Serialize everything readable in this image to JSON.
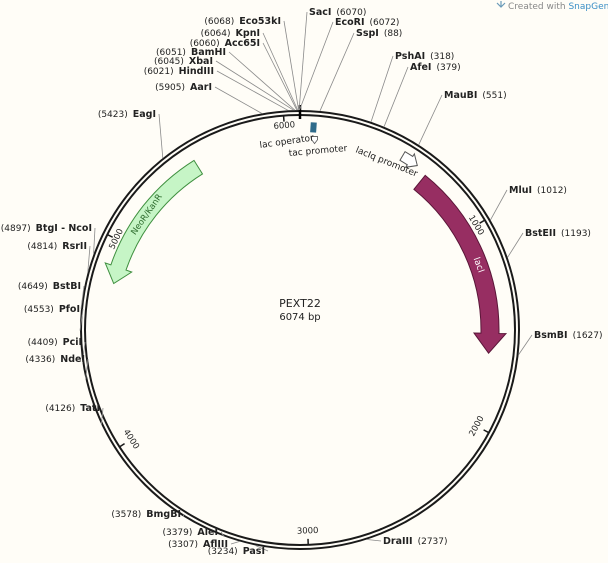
{
  "header": {
    "credit": "Created with",
    "brand": "SnapGene",
    "tm": "™"
  },
  "plasmid": {
    "name": "PEXT22",
    "size": "6074 bp"
  },
  "ruler_ticks": [
    1000,
    2000,
    3000,
    4000,
    5000,
    6000
  ],
  "sites": [
    {
      "name": "SacI",
      "position": "(6070)"
    },
    {
      "name": "EcoRI",
      "position": "(6072)"
    },
    {
      "name": "SspI",
      "position": "(88)"
    },
    {
      "name": "Eco53kI",
      "position": "(6068)"
    },
    {
      "name": "KpnI",
      "position": "(6064)"
    },
    {
      "name": "Acc65I",
      "position": "(6060)"
    },
    {
      "name": "BamHI",
      "position": "(6051)"
    },
    {
      "name": "XbaI",
      "position": "(6045)"
    },
    {
      "name": "HindIII",
      "position": "(6021)"
    },
    {
      "name": "AarI",
      "position": "(5905)"
    },
    {
      "name": "EagI",
      "position": "(5423)"
    },
    {
      "name": "BtgI - NcoI",
      "position": "(4897)"
    },
    {
      "name": "RsrII",
      "position": "(4814)"
    },
    {
      "name": "BstBI",
      "position": "(4649)"
    },
    {
      "name": "PfoI",
      "position": "(4553)"
    },
    {
      "name": "PciI",
      "position": "(4409)"
    },
    {
      "name": "NdeI",
      "position": "(4336)"
    },
    {
      "name": "TatI",
      "position": "(4126)"
    },
    {
      "name": "BmgBI",
      "position": "(3578)"
    },
    {
      "name": "AleI",
      "position": "(3379)"
    },
    {
      "name": "AflIII",
      "position": "(3307)"
    },
    {
      "name": "PasI",
      "position": "(3234)"
    },
    {
      "name": "DraIII",
      "position": "(2737)"
    },
    {
      "name": "BsmBI",
      "position": "(1627)"
    },
    {
      "name": "BstEII",
      "position": "(1193)"
    },
    {
      "name": "MluI",
      "position": "(1012)"
    },
    {
      "name": "MauBI",
      "position": "(551)"
    },
    {
      "name": "AfeI",
      "position": "(379)"
    },
    {
      "name": "PshAI",
      "position": "(318)"
    }
  ],
  "features": [
    {
      "label": "lac operator"
    },
    {
      "label": "tac promoter"
    },
    {
      "label": "lacIq promoter"
    },
    {
      "label": "lacI"
    },
    {
      "label": "NeoR/KanR"
    }
  ]
}
